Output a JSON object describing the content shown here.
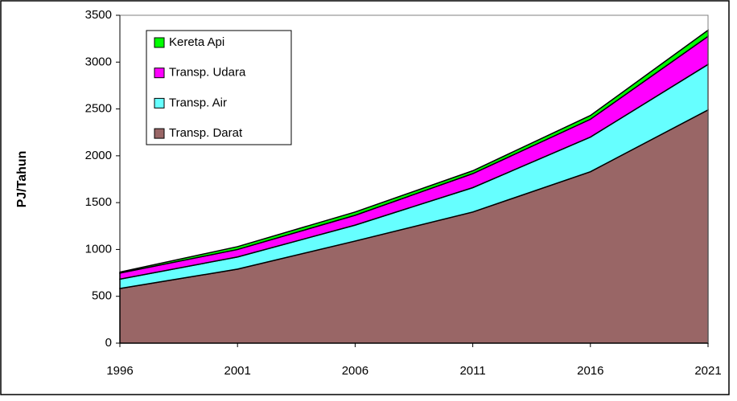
{
  "chart_data": {
    "type": "stacked-area",
    "y_label": "PJ/Tahun",
    "x": [
      1996,
      2001,
      2006,
      2011,
      2016,
      2021
    ],
    "xlim": [
      1996,
      2021
    ],
    "xticks": [
      1996,
      2001,
      2006,
      2011,
      2016,
      2021
    ],
    "ylim": [
      0,
      3500
    ],
    "yticks": [
      0,
      500,
      1000,
      1500,
      2000,
      2500,
      3000,
      3500
    ],
    "series": [
      {
        "name": "Transp. Darat",
        "color": "#996666",
        "values": [
          583,
          790,
          1090,
          1400,
          1830,
          2490
        ]
      },
      {
        "name": "Transp. Air",
        "color": "#66ffff",
        "values": [
          100,
          130,
          170,
          260,
          370,
          485
        ]
      },
      {
        "name": "Transp. Udara",
        "color": "#ff00ff",
        "values": [
          65,
          80,
          105,
          150,
          190,
          300
        ]
      },
      {
        "name": "Kereta Api",
        "color": "#00ff00",
        "values": [
          10,
          30,
          35,
          30,
          40,
          65
        ]
      }
    ]
  }
}
